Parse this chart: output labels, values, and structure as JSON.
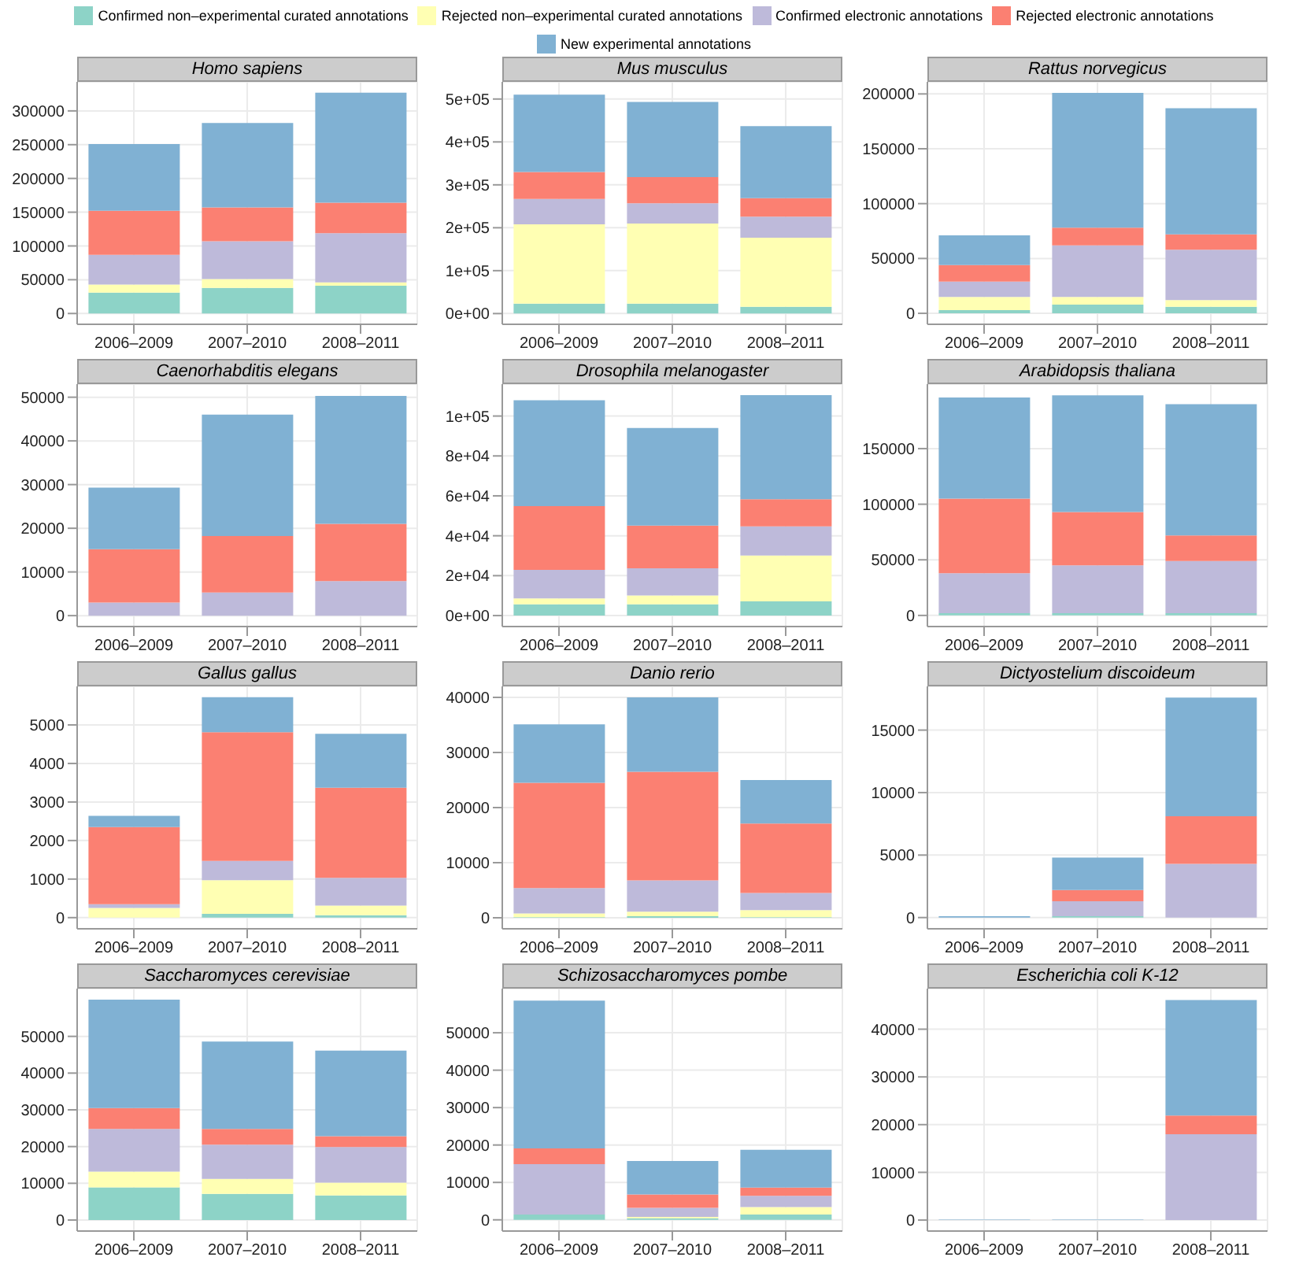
{
  "chart_data": [
    {
      "type": "bar",
      "title": "Homo sapiens",
      "stacked": true,
      "grid": true,
      "legend": "top",
      "categories": [
        "2006–2009",
        "2007–2010",
        "2008–2011"
      ],
      "ylim": [
        -16000,
        343000
      ],
      "yticks": [
        0,
        50000,
        100000,
        150000,
        200000,
        250000,
        300000
      ],
      "series": [
        {
          "name": "Confirmed non–experimental curated annotations",
          "color": "#8dd3c7",
          "values": [
            31000,
            38000,
            41000
          ]
        },
        {
          "name": "Rejected non–experimental curated annotations",
          "color": "#ffffb3",
          "values": [
            12000,
            13000,
            5000
          ]
        },
        {
          "name": "Confirmed electronic annotations",
          "color": "#bebada",
          "values": [
            44000,
            56000,
            73000
          ]
        },
        {
          "name": "Rejected electronic annotations",
          "color": "#fb8072",
          "values": [
            65000,
            50000,
            45000
          ]
        },
        {
          "name": "New experimental annotations",
          "color": "#80b1d3",
          "values": [
            99000,
            125000,
            163000
          ]
        }
      ]
    },
    {
      "type": "bar",
      "title": "Mus musculus",
      "stacked": true,
      "grid": true,
      "categories": [
        "2006–2009",
        "2007–2010",
        "2008–2011"
      ],
      "ylim": [
        -25000,
        540000
      ],
      "yticks": [
        {
          "value": 0,
          "label": "0e+00"
        },
        {
          "value": 100000,
          "label": "1e+05"
        },
        {
          "value": 200000,
          "label": "2e+05"
        },
        {
          "value": 300000,
          "label": "3e+05"
        },
        {
          "value": 400000,
          "label": "4e+05"
        },
        {
          "value": 500000,
          "label": "5e+05"
        }
      ],
      "series": [
        {
          "color": "#8dd3c7",
          "values": [
            23000,
            23000,
            16000
          ]
        },
        {
          "color": "#ffffb3",
          "values": [
            185000,
            187000,
            161000
          ]
        },
        {
          "color": "#bebada",
          "values": [
            59000,
            47000,
            49000
          ]
        },
        {
          "color": "#fb8072",
          "values": [
            63000,
            61000,
            43000
          ]
        },
        {
          "color": "#80b1d3",
          "values": [
            180000,
            175000,
            168000
          ]
        }
      ]
    },
    {
      "type": "bar",
      "title": "Rattus norvegicus",
      "stacked": true,
      "grid": true,
      "categories": [
        "2006–2009",
        "2007–2010",
        "2008–2011"
      ],
      "ylim": [
        -10000,
        211000
      ],
      "yticks": [
        0,
        50000,
        100000,
        150000,
        200000
      ],
      "series": [
        {
          "color": "#8dd3c7",
          "values": [
            3000,
            8000,
            6000
          ]
        },
        {
          "color": "#ffffb3",
          "values": [
            12000,
            7000,
            6000
          ]
        },
        {
          "color": "#bebada",
          "values": [
            14000,
            47000,
            46000
          ]
        },
        {
          "color": "#fb8072",
          "values": [
            15000,
            16000,
            14000
          ]
        },
        {
          "color": "#80b1d3",
          "values": [
            27000,
            123000,
            115000
          ]
        }
      ]
    },
    {
      "type": "bar",
      "title": "Caenorhabditis elegans",
      "stacked": true,
      "grid": true,
      "categories": [
        "2006–2009",
        "2007–2010",
        "2008–2011"
      ],
      "ylim": [
        -2500,
        53000
      ],
      "yticks": [
        0,
        10000,
        20000,
        30000,
        40000,
        50000
      ],
      "series": [
        {
          "color": "#8dd3c7",
          "values": [
            0,
            0,
            0
          ]
        },
        {
          "color": "#ffffb3",
          "values": [
            0,
            null,
            null
          ]
        },
        {
          "color": "#bebada",
          "values": [
            3000,
            5300,
            7900
          ]
        },
        {
          "color": "#fb8072",
          "values": [
            12200,
            12900,
            13100
          ]
        },
        {
          "color": "#80b1d3",
          "values": [
            14100,
            27800,
            29300
          ]
        }
      ]
    },
    {
      "type": "bar",
      "title": "Drosophila melanogaster",
      "stacked": true,
      "grid": true,
      "categories": [
        "2006–2009",
        "2007–2010",
        "2008–2011"
      ],
      "ylim": [
        -5500,
        116000
      ],
      "yticks": [
        {
          "value": 0,
          "label": "0e+00"
        },
        {
          "value": 20000,
          "label": "2e+04"
        },
        {
          "value": 40000,
          "label": "4e+04"
        },
        {
          "value": 60000,
          "label": "6e+04"
        },
        {
          "value": 80000,
          "label": "8e+04"
        },
        {
          "value": 100000,
          "label": "1e+05"
        }
      ],
      "series": [
        {
          "color": "#8dd3c7",
          "values": [
            5600,
            5600,
            7100
          ]
        },
        {
          "color": "#ffffb3",
          "values": [
            3000,
            4500,
            23000
          ]
        },
        {
          "color": "#bebada",
          "values": [
            14300,
            13600,
            14600
          ]
        },
        {
          "color": "#fb8072",
          "values": [
            32000,
            21400,
            13600
          ]
        },
        {
          "color": "#80b1d3",
          "values": [
            53000,
            48900,
            52200
          ]
        }
      ]
    },
    {
      "type": "bar",
      "title": "Arabidopsis thaliana",
      "stacked": true,
      "grid": true,
      "categories": [
        "2006–2009",
        "2007–2010",
        "2008–2011"
      ],
      "ylim": [
        -10000,
        208000
      ],
      "yticks": [
        0,
        50000,
        100000,
        150000
      ],
      "series": [
        {
          "color": "#8dd3c7",
          "values": [
            2000,
            2000,
            2000
          ]
        },
        {
          "color": "#ffffb3",
          "values": [
            0,
            0,
            0
          ]
        },
        {
          "color": "#bebada",
          "values": [
            36000,
            43000,
            47000
          ]
        },
        {
          "color": "#fb8072",
          "values": [
            67000,
            48000,
            23000
          ]
        },
        {
          "color": "#80b1d3",
          "values": [
            91000,
            105000,
            118000
          ]
        }
      ]
    },
    {
      "type": "bar",
      "title": "Gallus gallus",
      "stacked": true,
      "grid": true,
      "categories": [
        "2006–2009",
        "2007–2010",
        "2008–2011"
      ],
      "ylim": [
        -290,
        6000
      ],
      "yticks": [
        0,
        1000,
        2000,
        3000,
        4000,
        5000
      ],
      "series": [
        {
          "color": "#8dd3c7",
          "values": [
            0,
            100,
            60
          ]
        },
        {
          "color": "#ffffb3",
          "values": [
            250,
            870,
            250
          ]
        },
        {
          "color": "#bebada",
          "values": [
            100,
            500,
            720
          ]
        },
        {
          "color": "#fb8072",
          "values": [
            2000,
            3340,
            2340
          ]
        },
        {
          "color": "#80b1d3",
          "values": [
            290,
            910,
            1400
          ]
        }
      ]
    },
    {
      "type": "bar",
      "title": "Danio rerio",
      "stacked": true,
      "grid": true,
      "categories": [
        "2006–2009",
        "2007–2010",
        "2008–2011"
      ],
      "ylim": [
        -2000,
        42000
      ],
      "yticks": [
        0,
        10000,
        20000,
        30000,
        40000
      ],
      "series": [
        {
          "color": "#8dd3c7",
          "values": [
            100,
            300,
            100
          ]
        },
        {
          "color": "#ffffb3",
          "values": [
            700,
            800,
            1300
          ]
        },
        {
          "color": "#bebada",
          "values": [
            4600,
            5700,
            3100
          ]
        },
        {
          "color": "#fb8072",
          "values": [
            19100,
            19700,
            12600
          ]
        },
        {
          "color": "#80b1d3",
          "values": [
            10600,
            13500,
            7900
          ]
        }
      ]
    },
    {
      "type": "bar",
      "title": "Dictyostelium discoideum",
      "stacked": true,
      "grid": true,
      "categories": [
        "2006–2009",
        "2007–2010",
        "2008–2011"
      ],
      "ylim": [
        -900,
        18500
      ],
      "yticks": [
        0,
        5000,
        10000,
        15000
      ],
      "series": [
        {
          "color": "#8dd3c7",
          "values": [
            0,
            100,
            0
          ]
        },
        {
          "color": "#ffffb3",
          "values": [
            0,
            0,
            0
          ]
        },
        {
          "color": "#bebada",
          "values": [
            0,
            1200,
            4300
          ]
        },
        {
          "color": "#fb8072",
          "values": [
            0,
            900,
            3800
          ]
        },
        {
          "color": "#80b1d3",
          "values": [
            100,
            2600,
            9500
          ]
        }
      ]
    },
    {
      "type": "bar",
      "title": "Saccharomyces cerevisiae",
      "stacked": true,
      "grid": true,
      "categories": [
        "2006–2009",
        "2007–2010",
        "2008–2011"
      ],
      "ylim": [
        -3000,
        63000
      ],
      "yticks": [
        0,
        10000,
        20000,
        30000,
        40000,
        50000
      ],
      "series": [
        {
          "color": "#8dd3c7",
          "values": [
            8900,
            7100,
            6700
          ]
        },
        {
          "color": "#ffffb3",
          "values": [
            4300,
            4100,
            3500
          ]
        },
        {
          "color": "#bebada",
          "values": [
            11600,
            9300,
            9700
          ]
        },
        {
          "color": "#fb8072",
          "values": [
            5700,
            4300,
            2900
          ]
        },
        {
          "color": "#80b1d3",
          "values": [
            29500,
            23800,
            23300
          ]
        }
      ]
    },
    {
      "type": "bar",
      "title": "Schizosaccharomyces pombe",
      "stacked": true,
      "grid": true,
      "categories": [
        "2006–2009",
        "2007–2010",
        "2008–2011"
      ],
      "ylim": [
        -3000,
        61800
      ],
      "yticks": [
        0,
        10000,
        20000,
        30000,
        40000,
        50000
      ],
      "series": [
        {
          "color": "#8dd3c7",
          "values": [
            1400,
            400,
            1400
          ]
        },
        {
          "color": "#ffffb3",
          "values": [
            null,
            400,
            2000
          ]
        },
        {
          "color": "#bebada",
          "values": [
            13500,
            2400,
            3000
          ]
        },
        {
          "color": "#fb8072",
          "values": [
            4200,
            3600,
            2200
          ]
        },
        {
          "color": "#80b1d3",
          "values": [
            39500,
            8900,
            10100
          ]
        }
      ]
    },
    {
      "type": "bar",
      "title": "Escherichia coli K-12",
      "stacked": true,
      "grid": true,
      "categories": [
        "2006–2009",
        "2007–2010",
        "2008–2011"
      ],
      "ylim": [
        -2300,
        48500
      ],
      "yticks": [
        0,
        10000,
        20000,
        30000,
        40000
      ],
      "series": [
        {
          "color": "#8dd3c7",
          "values": [
            0,
            0,
            0
          ]
        },
        {
          "color": "#ffffb3",
          "values": [
            0,
            0,
            0
          ]
        },
        {
          "color": "#bebada",
          "values": [
            0,
            0,
            18000
          ]
        },
        {
          "color": "#fb8072",
          "values": [
            0,
            0,
            3900
          ]
        },
        {
          "color": "#80b1d3",
          "values": [
            100,
            100,
            24200
          ]
        }
      ]
    }
  ]
}
